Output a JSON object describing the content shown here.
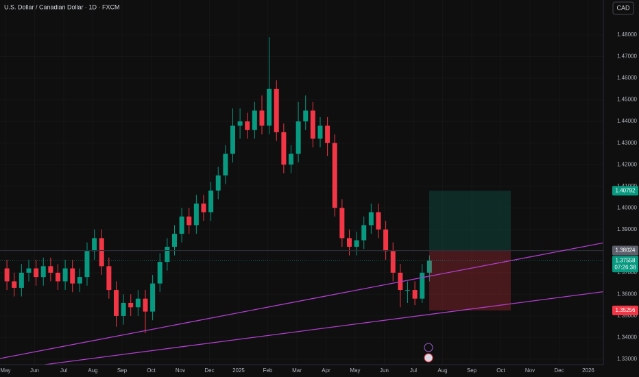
{
  "chart_data": {
    "type": "candlestick",
    "title": "U.S. Dollar / Canadian Dollar · 1D · FXCM",
    "currency": "CAD",
    "x": [
      0.05,
      0.3,
      0.55,
      0.8,
      1.05,
      1.3,
      1.55,
      1.8,
      2.05,
      2.3,
      2.55,
      2.8,
      3.05,
      3.3,
      3.55,
      3.8,
      4.05,
      4.3,
      4.55,
      4.8,
      5.05,
      5.3,
      5.55,
      5.8,
      6.05,
      6.3,
      6.55,
      6.8,
      7.05,
      7.3,
      7.55,
      7.8,
      8.05,
      8.3,
      8.55,
      8.8,
      9.05,
      9.3,
      9.55,
      9.8,
      10.05,
      10.3,
      10.55,
      10.8,
      11.05,
      11.3,
      11.55,
      11.8,
      12.05,
      12.3,
      12.55,
      12.8,
      13.05,
      13.3,
      13.55,
      13.8,
      14.05,
      14.3,
      14.55
    ],
    "open": [
      1.372,
      1.366,
      1.363,
      1.37,
      1.372,
      1.368,
      1.373,
      1.37,
      1.366,
      1.372,
      1.365,
      1.368,
      1.38,
      1.386,
      1.373,
      1.362,
      1.35,
      1.356,
      1.354,
      1.358,
      1.352,
      1.365,
      1.375,
      1.382,
      1.388,
      1.396,
      1.392,
      1.402,
      1.398,
      1.408,
      1.415,
      1.425,
      1.438,
      1.44,
      1.436,
      1.445,
      1.438,
      1.455,
      1.435,
      1.42,
      1.425,
      1.44,
      1.445,
      1.432,
      1.438,
      1.43,
      1.4,
      1.386,
      1.382,
      1.385,
      1.392,
      1.398,
      1.39,
      1.38,
      1.37,
      1.362,
      1.362,
      1.358,
      1.37
    ],
    "high": [
      1.376,
      1.37,
      1.374,
      1.376,
      1.376,
      1.377,
      1.377,
      1.374,
      1.376,
      1.376,
      1.372,
      1.384,
      1.39,
      1.39,
      1.377,
      1.366,
      1.36,
      1.36,
      1.362,
      1.362,
      1.369,
      1.379,
      1.386,
      1.392,
      1.4,
      1.4,
      1.406,
      1.406,
      1.412,
      1.419,
      1.429,
      1.446,
      1.446,
      1.444,
      1.449,
      1.452,
      1.479,
      1.459,
      1.439,
      1.429,
      1.449,
      1.452,
      1.449,
      1.442,
      1.442,
      1.434,
      1.404,
      1.39,
      1.389,
      1.396,
      1.402,
      1.402,
      1.394,
      1.384,
      1.374,
      1.366,
      1.366,
      1.374,
      1.378
    ],
    "low": [
      1.362,
      1.359,
      1.359,
      1.366,
      1.364,
      1.364,
      1.366,
      1.362,
      1.362,
      1.361,
      1.361,
      1.364,
      1.376,
      1.369,
      1.358,
      1.345,
      1.346,
      1.35,
      1.35,
      1.342,
      1.348,
      1.361,
      1.371,
      1.378,
      1.384,
      1.388,
      1.388,
      1.394,
      1.394,
      1.404,
      1.411,
      1.421,
      1.432,
      1.432,
      1.432,
      1.434,
      1.434,
      1.431,
      1.416,
      1.416,
      1.421,
      1.436,
      1.428,
      1.428,
      1.424,
      1.396,
      1.382,
      1.378,
      1.378,
      1.381,
      1.388,
      1.386,
      1.376,
      1.366,
      1.354,
      1.356,
      1.355,
      1.356,
      1.366
    ],
    "close": [
      1.366,
      1.363,
      1.37,
      1.372,
      1.368,
      1.373,
      1.37,
      1.366,
      1.372,
      1.365,
      1.368,
      1.38,
      1.386,
      1.373,
      1.362,
      1.35,
      1.356,
      1.354,
      1.358,
      1.352,
      1.365,
      1.375,
      1.382,
      1.388,
      1.396,
      1.392,
      1.402,
      1.398,
      1.408,
      1.415,
      1.425,
      1.438,
      1.44,
      1.436,
      1.445,
      1.438,
      1.455,
      1.435,
      1.42,
      1.425,
      1.44,
      1.445,
      1.432,
      1.438,
      1.43,
      1.4,
      1.386,
      1.382,
      1.385,
      1.392,
      1.398,
      1.39,
      1.38,
      1.37,
      1.362,
      1.362,
      1.358,
      1.37,
      1.37558
    ],
    "up_color": "#089981",
    "down_color": "#f23645",
    "xlim": [
      -0.188,
      20.518
    ],
    "xticks": [
      {
        "value": 0,
        "label": "May"
      },
      {
        "value": 1,
        "label": "Jun"
      },
      {
        "value": 2,
        "label": "Jul"
      },
      {
        "value": 3,
        "label": "Aug"
      },
      {
        "value": 4,
        "label": "Sep"
      },
      {
        "value": 5,
        "label": "Oct"
      },
      {
        "value": 6,
        "label": "Nov"
      },
      {
        "value": 7,
        "label": "Dec"
      },
      {
        "value": 8,
        "label": "2025"
      },
      {
        "value": 9,
        "label": "Feb"
      },
      {
        "value": 10,
        "label": "Mar"
      },
      {
        "value": 11,
        "label": "Apr"
      },
      {
        "value": 12,
        "label": "May"
      },
      {
        "value": 13,
        "label": "Jun"
      },
      {
        "value": 14,
        "label": "Jul"
      },
      {
        "value": 15,
        "label": "Aug"
      },
      {
        "value": 16,
        "label": "Sep"
      },
      {
        "value": 17,
        "label": "Oct"
      },
      {
        "value": 18,
        "label": "Nov"
      },
      {
        "value": 19,
        "label": "Dec"
      },
      {
        "value": 20,
        "label": "2026"
      }
    ],
    "ylim": [
      1.32745,
      1.49617
    ],
    "yticks": [
      {
        "value": 1.33,
        "label": "1.33000"
      },
      {
        "value": 1.34,
        "label": "1.34000"
      },
      {
        "value": 1.35,
        "label": "1.35000"
      },
      {
        "value": 1.36,
        "label": "1.36000"
      },
      {
        "value": 1.37,
        "label": "1.37000"
      },
      {
        "value": 1.38,
        "label": "1.38000"
      },
      {
        "value": 1.39,
        "label": "1.39000"
      },
      {
        "value": 1.4,
        "label": "1.40000"
      },
      {
        "value": 1.41,
        "label": "1.41000"
      },
      {
        "value": 1.42,
        "label": "1.42000"
      },
      {
        "value": 1.43,
        "label": "1.43000"
      },
      {
        "value": 1.44,
        "label": "1.44000"
      },
      {
        "value": 1.45,
        "label": "1.45000"
      },
      {
        "value": 1.46,
        "label": "1.46000"
      },
      {
        "value": 1.47,
        "label": "1.47000"
      },
      {
        "value": 1.48,
        "label": "1.48000"
      }
    ],
    "position": {
      "target": 1.40792,
      "entry": 1.38024,
      "stop": 1.35256,
      "target_color": "#089981",
      "entry_color": "#5d606b",
      "stop_color": "#f23645"
    },
    "last_price": 1.37558,
    "countdown": "07:26:38"
  }
}
